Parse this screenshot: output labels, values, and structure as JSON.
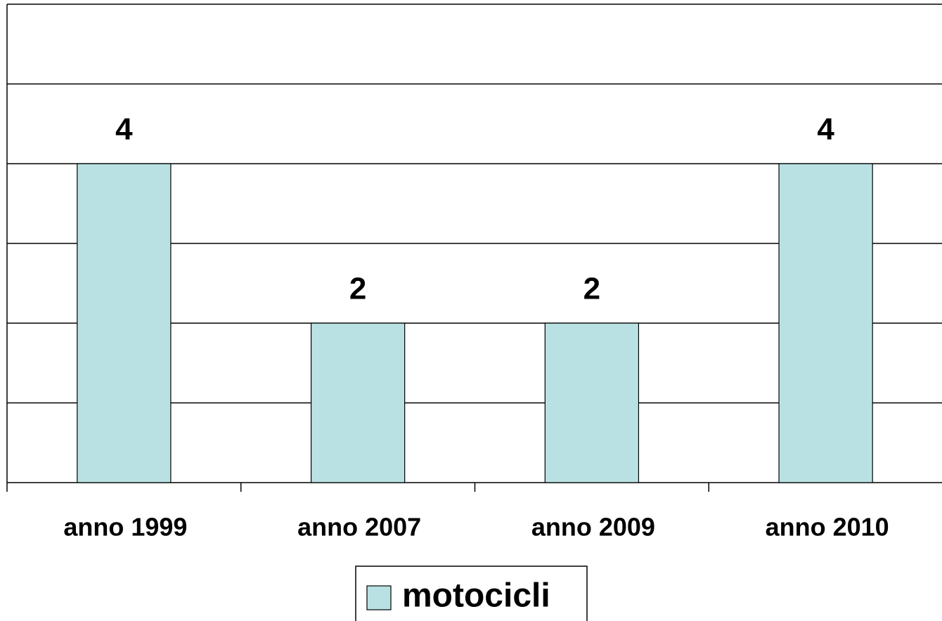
{
  "chart_data": {
    "type": "bar",
    "categories": [
      "anno 1999",
      "anno 2007",
      "anno 2009",
      "anno 2010"
    ],
    "series": [
      {
        "name": "motocicli",
        "color": "#b9e1e3",
        "values": [
          4,
          2,
          2,
          4
        ]
      }
    ],
    "ylim": [
      0,
      6
    ],
    "yticks": [
      0,
      1,
      2,
      3,
      4,
      5,
      6
    ],
    "grid": true,
    "legend": "bottom"
  }
}
